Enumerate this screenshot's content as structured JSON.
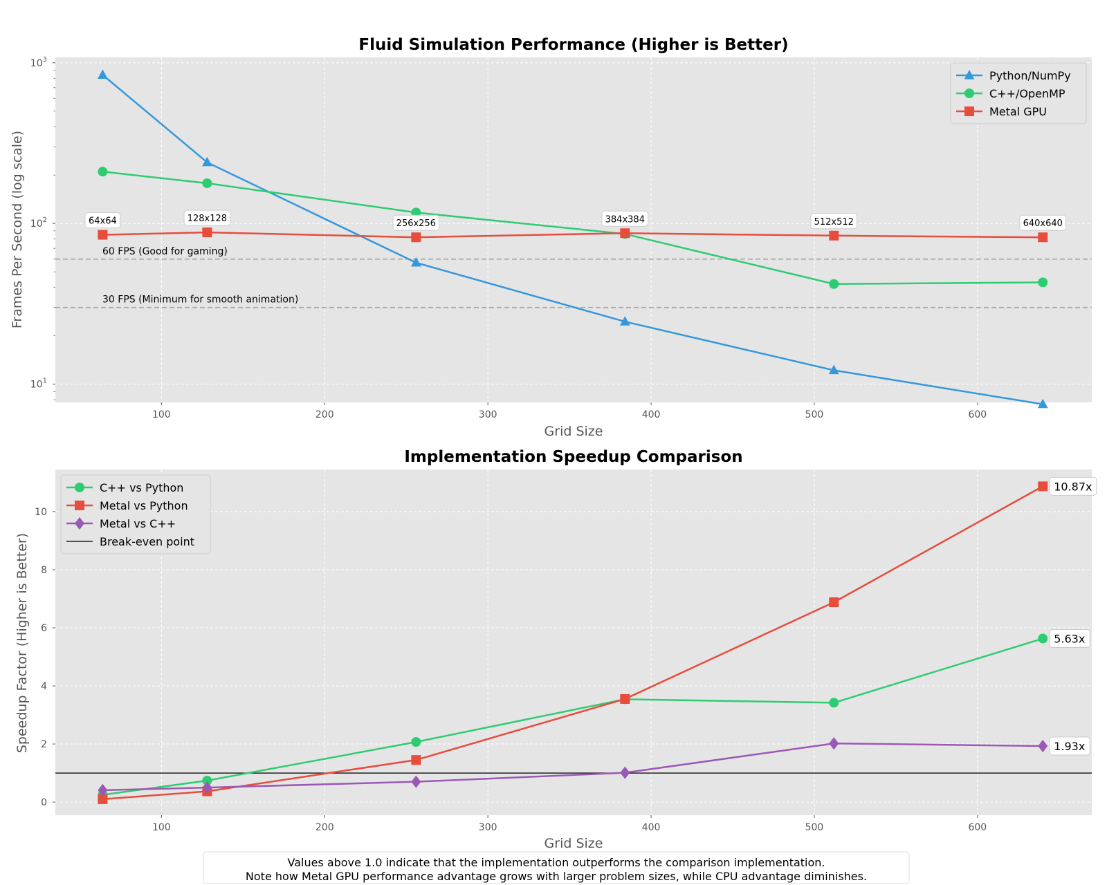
{
  "colors": {
    "python": "#3498db",
    "cpp": "#2ecc71",
    "metal": "#e74c3c",
    "metal_vs_cpp": "#9b59b6",
    "panel_bg": "#e5e5e5",
    "grid": "#ffffff",
    "refline": "#aaaaaa",
    "breakeven": "#222222"
  },
  "chart_data": [
    {
      "type": "line",
      "title": "Fluid Simulation Performance (Higher is Better)",
      "xlabel": "Grid Size",
      "ylabel": "Frames Per Second (log scale)",
      "yscale": "log",
      "xlim": [
        35,
        670
      ],
      "ylim": [
        7.7,
        1080
      ],
      "x_ticks": [
        100,
        200,
        300,
        400,
        500,
        600
      ],
      "y_ticks": [
        {
          "value": 10,
          "base": "10",
          "exp": "1"
        },
        {
          "value": 100,
          "base": "10",
          "exp": "2"
        },
        {
          "value": 1000,
          "base": "10",
          "exp": "3"
        }
      ],
      "grid": true,
      "legend_position": "top-right",
      "x": [
        64,
        128,
        256,
        384,
        512,
        640
      ],
      "series": [
        {
          "name": "Python/NumPy",
          "marker": "triangle",
          "color_key": "python",
          "values": [
            840,
            240,
            57,
            24.5,
            12.2,
            7.5
          ]
        },
        {
          "name": "C++/OpenMP",
          "marker": "circle",
          "color_key": "cpp",
          "values": [
            210,
            178,
            117,
            86,
            42,
            43
          ]
        },
        {
          "name": "Metal GPU",
          "marker": "square",
          "color_key": "metal",
          "values": [
            85,
            88,
            82,
            87,
            84,
            82
          ]
        }
      ],
      "point_labels": [
        "64x64",
        "128x128",
        "256x256",
        "384x384",
        "512x512",
        "640x640"
      ],
      "reference_lines": [
        {
          "value": 60,
          "label": "60 FPS (Good for gaming)"
        },
        {
          "value": 30,
          "label": "30 FPS (Minimum for smooth animation)"
        }
      ]
    },
    {
      "type": "line",
      "title": "Implementation Speedup Comparison",
      "xlabel": "Grid Size",
      "ylabel": "Speedup Factor (Higher is Better)",
      "yscale": "linear",
      "xlim": [
        35,
        670
      ],
      "ylim": [
        -0.45,
        11.45
      ],
      "x_ticks": [
        100,
        200,
        300,
        400,
        500,
        600
      ],
      "y_ticks": [
        0,
        2,
        4,
        6,
        8,
        10
      ],
      "grid": true,
      "legend_position": "top-left",
      "x": [
        64,
        128,
        256,
        384,
        512,
        640
      ],
      "series": [
        {
          "name": "C++ vs Python",
          "marker": "circle",
          "color_key": "cpp",
          "values": [
            0.25,
            0.74,
            2.07,
            3.54,
            3.42,
            5.63
          ],
          "end_label": "5.63x"
        },
        {
          "name": "Metal vs Python",
          "marker": "square",
          "color_key": "metal",
          "values": [
            0.1,
            0.37,
            1.45,
            3.55,
            6.88,
            10.87
          ],
          "end_label": "10.87x"
        },
        {
          "name": "Metal vs C++",
          "marker": "diamond",
          "color_key": "metal_vs_cpp",
          "values": [
            0.41,
            0.5,
            0.7,
            1.01,
            2.02,
            1.93
          ],
          "end_label": "1.93x"
        }
      ],
      "break_even": {
        "value": 1.0,
        "name": "Break-even point"
      }
    }
  ],
  "footnote": {
    "line1": "Values above 1.0 indicate that the implementation outperforms the comparison implementation.",
    "line2": "Note how Metal GPU performance advantage grows with larger problem sizes, while CPU advantage diminishes."
  }
}
